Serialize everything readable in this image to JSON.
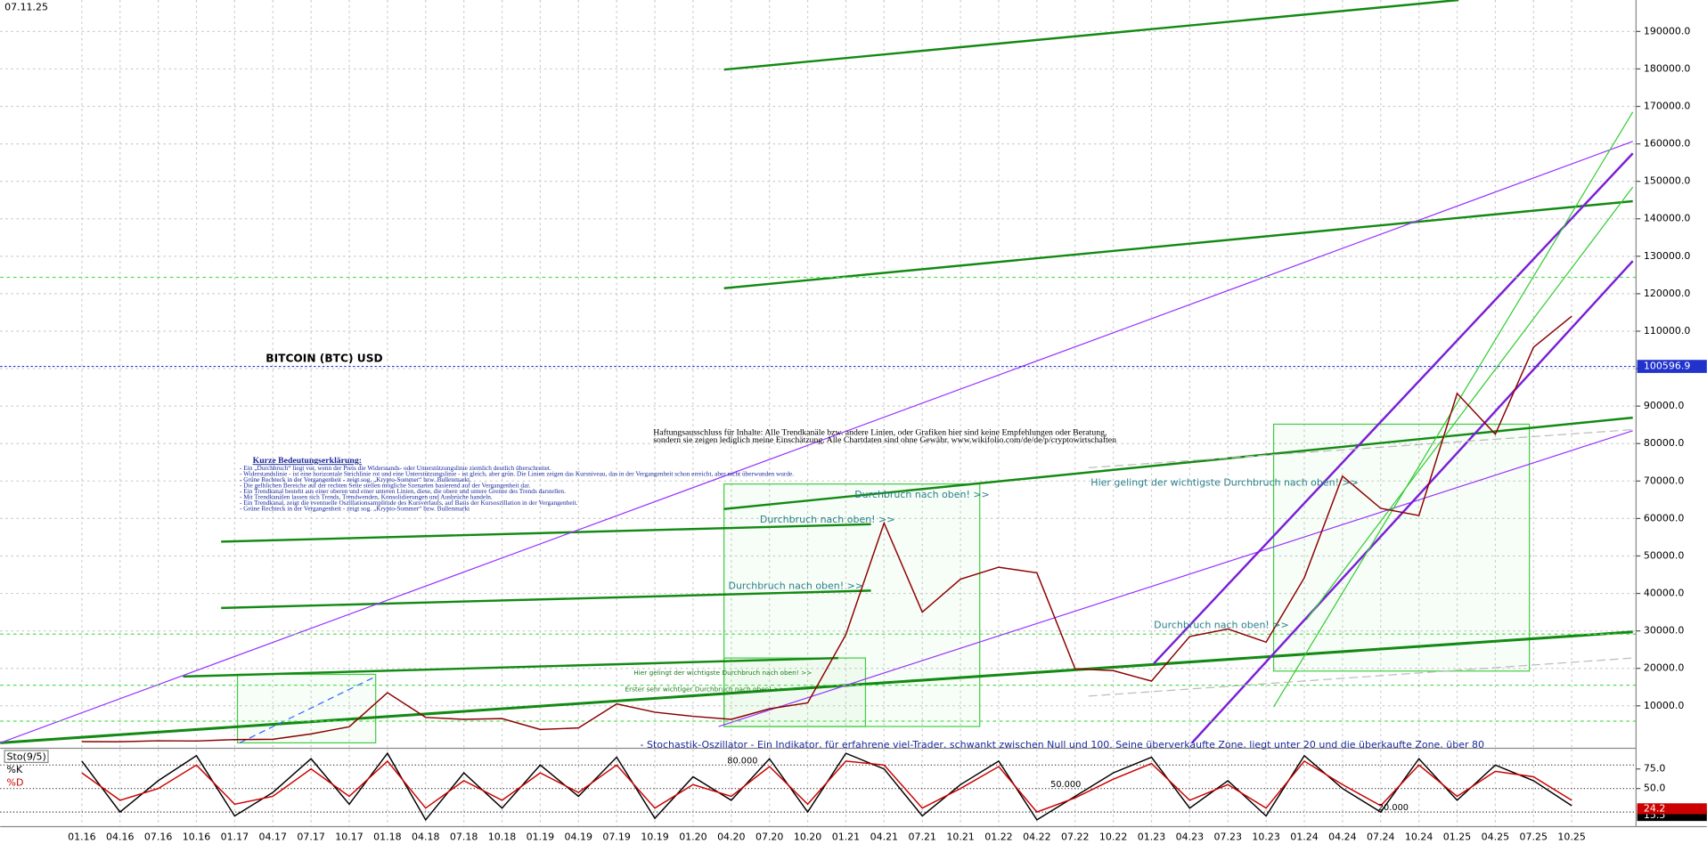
{
  "chart_data": [
    {
      "type": "line",
      "title": "BITCOIN (BTC) USD",
      "date": "07.11.25",
      "categories": [
        "01.16",
        "04.16",
        "07.16",
        "10.16",
        "01.17",
        "04.17",
        "07.17",
        "10.17",
        "01.18",
        "04.18",
        "07.18",
        "10.18",
        "01.19",
        "04.19",
        "07.19",
        "10.19",
        "01.20",
        "04.20",
        "07.20",
        "10.20",
        "01.21",
        "04.21",
        "07.21",
        "10.21",
        "01.22",
        "04.22",
        "07.22",
        "10.22",
        "01.23",
        "04.23",
        "07.23",
        "10.23",
        "01.24",
        "04.24",
        "07.24",
        "10.24",
        "01.25",
        "04.25",
        "07.25",
        "10.25"
      ],
      "series": [
        {
          "color": "#8b0000",
          "values": [
            430,
            420,
            670,
            610,
            1000,
            1080,
            2500,
            4400,
            13500,
            6900,
            6400,
            6600,
            3700,
            4100,
            10500,
            8300,
            7200,
            6400,
            9200,
            10800,
            29000,
            58800,
            35000,
            43800,
            47000,
            45500,
            19900,
            19400,
            16600,
            28500,
            30500,
            27000,
            44200,
            71300,
            62700,
            60800,
            93400,
            82500,
            105700,
            114000
          ]
        }
      ],
      "current": 100596.9,
      "ylim": [
        0,
        198400
      ],
      "yticks": [
        {
          "value": 10000,
          "label": "10000.0"
        },
        {
          "value": 20000,
          "label": "20000.0"
        },
        {
          "value": 30000,
          "label": "30000.0"
        },
        {
          "value": 40000,
          "label": "40000.0"
        },
        {
          "value": 50000,
          "label": "50000.0"
        },
        {
          "value": 60000,
          "label": "60000.0"
        },
        {
          "value": 70000,
          "label": "70000.0"
        },
        {
          "value": 80000,
          "label": "80000.0"
        },
        {
          "value": 90000,
          "label": "90000.0"
        },
        {
          "value": 100000,
          "label": "100000.0"
        },
        {
          "value": 110000,
          "label": "110000.0"
        },
        {
          "value": 120000,
          "label": "120000.0"
        },
        {
          "value": 130000,
          "label": "130000.0"
        },
        {
          "value": 140000,
          "label": "140000.0"
        },
        {
          "value": 150000,
          "label": "150000.0"
        },
        {
          "value": 160000,
          "label": "160000.0"
        },
        {
          "value": 170000,
          "label": "170000.0"
        },
        {
          "value": 180000,
          "label": "180000.0"
        },
        {
          "value": 190000,
          "label": "190000.0"
        }
      ],
      "grid": true,
      "annotations": [
        "Durchbruch nach oben! >>",
        "Durchbruch nach oben! >>",
        "Durchbruch nach oben! >>",
        "Durchbruch nach oben! >>",
        "Hier gelingt der wichtigste Durchbruch nach oben! >>",
        "Hier gelingt der wichtigste Durchbruch nach oben! >>",
        "Erster sehr wichtiger Durchbruch nach oben! >>"
      ],
      "disclaimer": [
        "Haftungsausschluss für Inhalte: Alle Trendkanäle bzw. andere Linien, oder Grafiken hier sind keine Empfehlungen oder Beratung,",
        "sondern sie zeigen lediglich meine Einschätzung. Alle Chartdaten sind ohne Gewähr. www.wikifolio.com/de/de/p/cryptowirtschaften"
      ],
      "legend_title": "Kurze Bedeutungserklärung:",
      "legend_lines": [
        "- Ein „Durchbruch“ liegt vor, wenn der Preis die Widerstands- oder Unterstützungslinie ziemlich deutlich überschreitet.",
        "- Widerstandslinie - ist eine horizontale Strichlinie rot und eine Unterstützungslinie - ist gleich, aber grün. Die Linien zeigen das Kursniveau, das in der Vergangenheit schon erreicht, aber nicht überwunden wurde.",
        "- Grüne Rechteck in der Vergangenheit - zeigt sog. „Krypto-Sommer“ bzw. Bullenmarkt.",
        "- Die gelblichen Bereiche auf der rechten Seite stellen mögliche Szenarien basierend auf der Vergangenheit dar.",
        "- Ein Trendkanal besteht aus einer oberen und einer unteren Linien, diese, die obere und untere Grenze des Trends darstellen.",
        "- Mit Trendkanälen lassen sich Trends, Trendwenden, Konsolidierungen und Ausbrüche handeln.",
        "- Ein Trendkanal, zeigt die eventuelle Oszillationsamplitude des Kursverlaufs, auf Basis der Kursoszillation in der Vergangenheit.",
        "- Grüne Rechteck in der Vergangenheit - zeigt sog. „Krypto-Sommer“ bzw. Bullenmarkt"
      ]
    },
    {
      "type": "line",
      "title": "Sto(9/5)",
      "description": "- Stochastik-Oszillator - Ein Indikator, für erfahrene viel-Trader, schwankt zwischen Null und 100. Seine überverkaufte Zone, liegt unter 20 und die überkaufte Zone, über 80",
      "series": [
        {
          "name": "%K",
          "color": "#000000",
          "values": [
            85,
            20,
            60,
            92,
            15,
            45,
            88,
            30,
            95,
            10,
            70,
            25,
            80,
            40,
            90,
            12,
            65,
            35,
            88,
            20,
            95,
            75,
            15,
            55,
            85,
            10,
            40,
            70,
            90,
            25,
            60,
            15,
            92,
            50,
            20,
            88,
            35,
            80,
            60,
            28
          ],
          "last_value": 15.5
        },
        {
          "name": "%D",
          "color": "#cc0000",
          "values": [
            70,
            35,
            50,
            80,
            30,
            40,
            75,
            40,
            85,
            25,
            60,
            35,
            70,
            45,
            80,
            25,
            55,
            40,
            78,
            30,
            85,
            80,
            25,
            50,
            78,
            20,
            38,
            62,
            82,
            35,
            55,
            25,
            85,
            55,
            28,
            80,
            40,
            72,
            65,
            35
          ],
          "last_value": 24.2
        }
      ],
      "ylim": [
        0,
        100
      ],
      "yticks": [
        {
          "value": 75,
          "label": "75.0"
        },
        {
          "value": 50,
          "label": "50.0"
        }
      ],
      "levels": [
        {
          "value": 80,
          "label": "80.000"
        },
        {
          "value": 50,
          "label": "50.000"
        },
        {
          "value": 20,
          "label": "20.000"
        }
      ]
    }
  ]
}
